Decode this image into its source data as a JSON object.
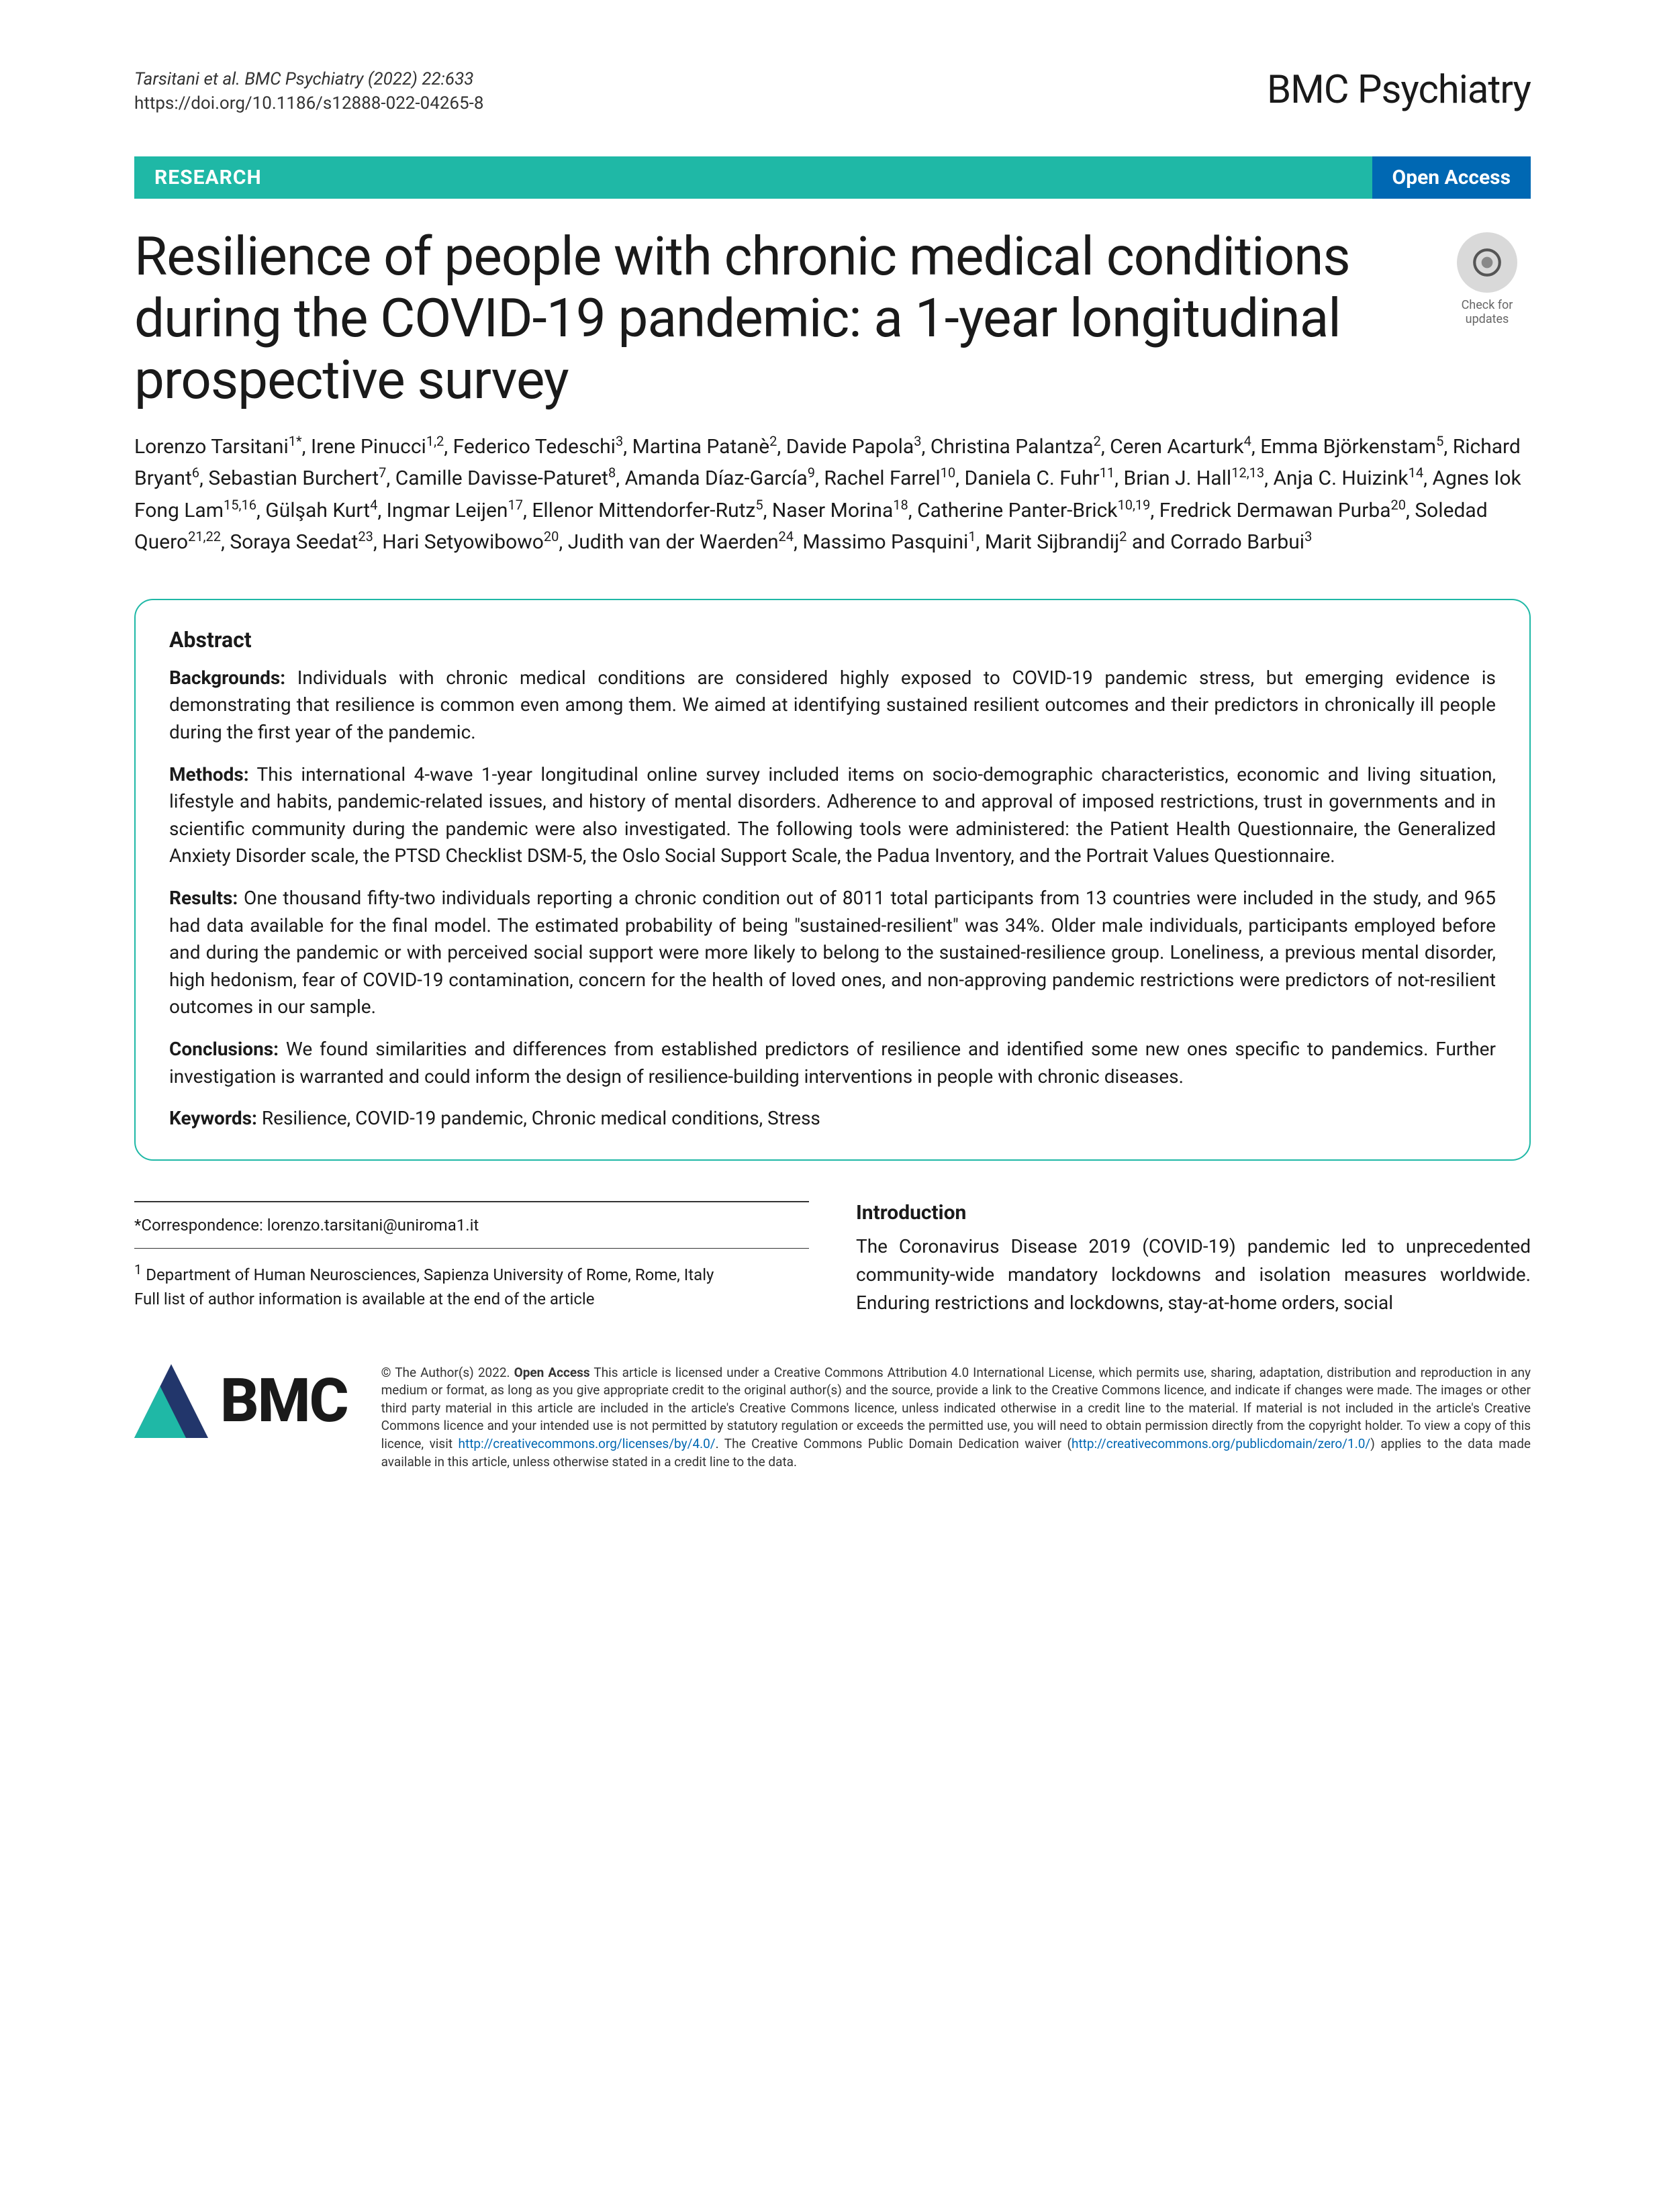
{
  "header": {
    "citation_line1": "Tarsitani et al. BMC Psychiatry     (2022) 22:633",
    "citation_line2": "https://doi.org/10.1186/s12888-022-04265-8",
    "journal_name": "BMC Psychiatry"
  },
  "banner": {
    "research_label": "RESEARCH",
    "open_access_label": "Open Access"
  },
  "title": "Resilience of people with chronic medical conditions during the COVID-19 pandemic: a 1-year longitudinal prospective survey",
  "check_updates": {
    "line1": "Check for",
    "line2": "updates"
  },
  "authors_html": "Lorenzo Tarsitani<sup>1*</sup>, Irene Pinucci<sup>1,2</sup>, Federico Tedeschi<sup>3</sup>, Martina Patanè<sup>2</sup>, Davide Papola<sup>3</sup>, Christina Palantza<sup>2</sup>, Ceren Acarturk<sup>4</sup>, Emma Björkenstam<sup>5</sup>, Richard Bryant<sup>6</sup>, Sebastian Burchert<sup>7</sup>, Camille Davisse-Paturet<sup>8</sup>, Amanda Díaz-García<sup>9</sup>, Rachel Farrel<sup>10</sup>, Daniela C. Fuhr<sup>11</sup>, Brian J. Hall<sup>12,13</sup>, Anja C. Huizink<sup>14</sup>, Agnes Iok Fong Lam<sup>15,16</sup>, Gülşah Kurt<sup>4</sup>, Ingmar Leijen<sup>17</sup>, Ellenor Mittendorfer-Rutz<sup>5</sup>, Naser Morina<sup>18</sup>, Catherine Panter-Brick<sup>10,19</sup>, Fredrick Dermawan Purba<sup>20</sup>, Soledad Quero<sup>21,22</sup>, Soraya Seedat<sup>23</sup>, Hari Setyowibowo<sup>20</sup>, Judith van der Waerden<sup>24</sup>, Massimo Pasquini<sup>1</sup>, Marit Sijbrandij<sup>2</sup> and Corrado Barbui<sup>3</sup>",
  "abstract": {
    "heading": "Abstract",
    "backgrounds_label": "Backgrounds:",
    "backgrounds_text": " Individuals with chronic medical conditions are considered highly exposed to COVID-19 pandemic stress, but emerging evidence is demonstrating that resilience is common even among them. We aimed at identifying sustained resilient outcomes and their predictors in chronically ill people during the first year of the pandemic.",
    "methods_label": "Methods:",
    "methods_text": " This international 4-wave 1-year longitudinal online survey included items on socio-demographic characteristics, economic and living situation, lifestyle and habits, pandemic-related issues, and history of mental disorders. Adherence to and approval of imposed restrictions, trust in governments and in scientific community during the pandemic were also investigated. The following tools were administered: the Patient Health Questionnaire, the Generalized Anxiety Disorder scale, the PTSD Checklist DSM-5, the Oslo Social Support Scale, the Padua Inventory, and the Portrait Values Questionnaire.",
    "results_label": "Results:",
    "results_text": " One thousand fifty-two individuals reporting a chronic condition out of 8011 total participants from 13 countries were included in the study, and 965 had data available for the final model. The estimated probability of being \"sustained-resilient\" was 34%. Older male individuals, participants employed before and during the pandemic or with perceived social support were more likely to belong to the sustained-resilience group. Loneliness, a previous mental disorder, high hedonism, fear of COVID-19 contamination, concern for the health of loved ones, and non-approving pandemic restrictions were predictors of not-resilient outcomes in our sample.",
    "conclusions_label": "Conclusions:",
    "conclusions_text": " We found similarities and differences from established predictors of resilience and identified some new ones specific to pandemics. Further investigation is warranted and could inform the design of resilience-building interventions in people with chronic diseases.",
    "keywords_label": "Keywords:",
    "keywords_text": " Resilience, COVID-19 pandemic, Chronic medical conditions, Stress"
  },
  "correspondence": {
    "line": "*Correspondence: lorenzo.tarsitani@uniroma1.it",
    "affiliation": "Department of Human Neurosciences, Sapienza University of Rome, Rome, Italy",
    "affiliation_sup": "1",
    "full_list_note": "Full list of author information is available at the end of the article"
  },
  "introduction": {
    "heading": "Introduction",
    "text": "The Coronavirus Disease 2019 (COVID-19) pandemic led to unprecedented community-wide mandatory lockdowns and isolation measures worldwide. Enduring restrictions and lockdowns, stay-at-home orders, social"
  },
  "bmc_logo_text": "BMC",
  "license": {
    "copyright": "© The Author(s) 2022. ",
    "bold": "Open Access",
    "text1": " This article is licensed under a Creative Commons Attribution 4.0 International License, which permits use, sharing, adaptation, distribution and reproduction in any medium or format, as long as you give appropriate credit to the original author(s) and the source, provide a link to the Creative Commons licence, and indicate if changes were made. The images or other third party material in this article are included in the article's Creative Commons licence, unless indicated otherwise in a credit line to the material. If material is not included in the article's Creative Commons licence and your intended use is not permitted by statutory regulation or exceeds the permitted use, you will need to obtain permission directly from the copyright holder. To view a copy of this licence, visit ",
    "link1": "http://creativecommons.org/licenses/by/4.0/",
    "text2": ". The Creative Commons Public Domain Dedication waiver (",
    "link2": "http://creativecommons.org/publicdomain/zero/1.0/",
    "text3": ") applies to the data made available in this article, unless otherwise stated in a credit line to the data."
  },
  "colors": {
    "teal": "#1fb8a6",
    "blue": "#0068b3",
    "navy": "#22366b"
  }
}
